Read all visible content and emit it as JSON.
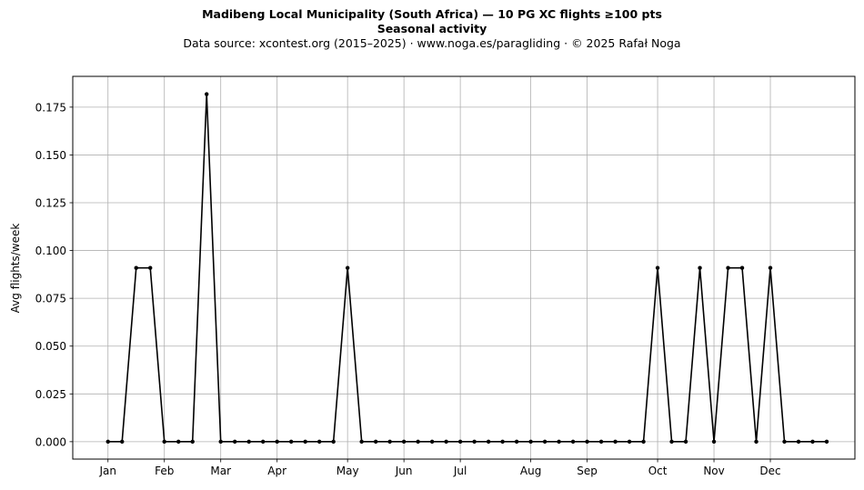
{
  "header": {
    "title": "Madibeng Local Municipality (South Africa)  —  10 PG XC flights ≥100 pts",
    "subtitle": "Seasonal activity",
    "source": "Data source: xcontest.org (2015–2025)  ·  www.noga.es/paragliding  ·  © 2025 Rafał Noga"
  },
  "chart_data": {
    "type": "line",
    "title": "Madibeng Local Municipality (South Africa)  —  10 PG XC flights ≥100 pts",
    "subtitle": "Seasonal activity",
    "xlabel": "",
    "ylabel": "Avg flights/week",
    "x": [
      1,
      2,
      3,
      4,
      5,
      6,
      7,
      8,
      9,
      10,
      11,
      12,
      13,
      14,
      15,
      16,
      17,
      18,
      19,
      20,
      21,
      22,
      23,
      24,
      25,
      26,
      27,
      28,
      29,
      30,
      31,
      32,
      33,
      34,
      35,
      36,
      37,
      38,
      39,
      40,
      41,
      42,
      43,
      44,
      45,
      46,
      47,
      48,
      49,
      50,
      51,
      52
    ],
    "xlim": [
      -1.5,
      54
    ],
    "ylim": [
      -0.0091,
      0.1911
    ],
    "x_ticks": [
      {
        "x": 1,
        "label": "Jan"
      },
      {
        "x": 5,
        "label": "Feb"
      },
      {
        "x": 9,
        "label": "Mar"
      },
      {
        "x": 13,
        "label": "Apr"
      },
      {
        "x": 18,
        "label": "May"
      },
      {
        "x": 22,
        "label": "Jun"
      },
      {
        "x": 26,
        "label": "Jul"
      },
      {
        "x": 31,
        "label": "Aug"
      },
      {
        "x": 35,
        "label": "Sep"
      },
      {
        "x": 40,
        "label": "Oct"
      },
      {
        "x": 44,
        "label": "Nov"
      },
      {
        "x": 48,
        "label": "Dec"
      }
    ],
    "y_ticks": [
      {
        "v": 0.0,
        "label": "0.000"
      },
      {
        "v": 0.025,
        "label": "0.025"
      },
      {
        "v": 0.05,
        "label": "0.050"
      },
      {
        "v": 0.075,
        "label": "0.075"
      },
      {
        "v": 0.1,
        "label": "0.100"
      },
      {
        "v": 0.125,
        "label": "0.125"
      },
      {
        "v": 0.15,
        "label": "0.150"
      },
      {
        "v": 0.175,
        "label": "0.175"
      }
    ],
    "grid": true,
    "series": [
      {
        "color": "#000000",
        "values": [
          0,
          0,
          0.0909,
          0.0909,
          0,
          0,
          0,
          0.1818,
          0,
          0,
          0,
          0,
          0,
          0,
          0,
          0,
          0,
          0.0909,
          0,
          0,
          0,
          0,
          0,
          0,
          0,
          0,
          0,
          0,
          0,
          0,
          0,
          0,
          0,
          0,
          0,
          0,
          0,
          0,
          0,
          0.0909,
          0,
          0,
          0.0909,
          0,
          0.0909,
          0.0909,
          0,
          0.0909,
          0,
          0,
          0,
          0
        ]
      }
    ]
  }
}
